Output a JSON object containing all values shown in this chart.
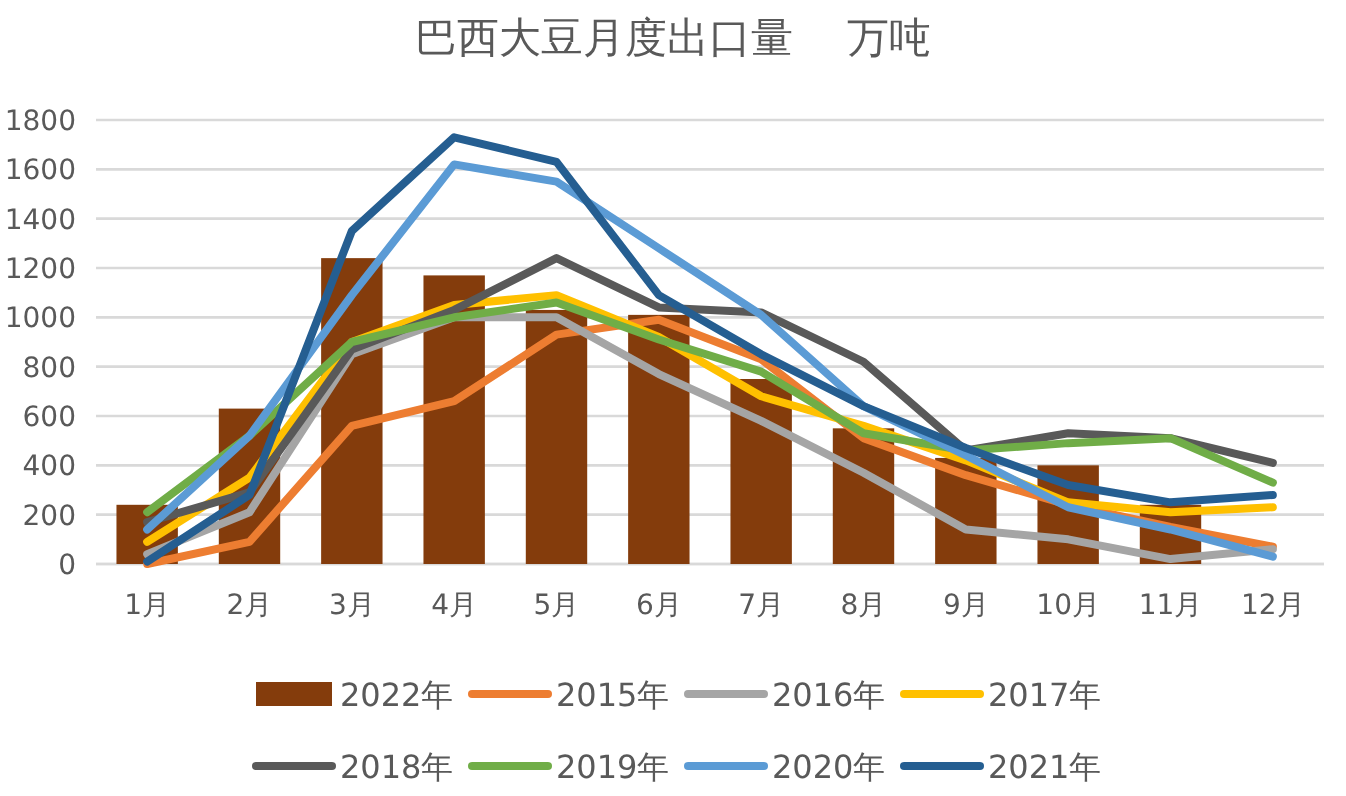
{
  "chart_data": {
    "type": "bar",
    "title": "巴西大豆月度出口量    万吨",
    "categories": [
      "1月",
      "2月",
      "3月",
      "4月",
      "5月",
      "6月",
      "7月",
      "8月",
      "9月",
      "10月",
      "11月",
      "12月"
    ],
    "series": [
      {
        "name": "2022年",
        "color": "#843c0c",
        "values": [
          240,
          630,
          1240,
          1170,
          1030,
          1010,
          750,
          550,
          430,
          400,
          240,
          null
        ]
      },
      {
        "name": "2015年",
        "type": "line",
        "color": "#ed7d31",
        "values": [
          0,
          90,
          560,
          660,
          930,
          990,
          830,
          510,
          360,
          240,
          150,
          70
        ]
      },
      {
        "name": "2016年",
        "type": "line",
        "color": "#a5a5a5",
        "values": [
          40,
          210,
          850,
          1000,
          1000,
          770,
          580,
          370,
          140,
          100,
          20,
          60
        ]
      },
      {
        "name": "2017年",
        "type": "line",
        "color": "#ffc000",
        "values": [
          90,
          350,
          900,
          1050,
          1090,
          920,
          680,
          560,
          420,
          250,
          210,
          230
        ]
      },
      {
        "name": "2018年",
        "type": "line",
        "color": "#595959",
        "values": [
          170,
          290,
          870,
          1030,
          1240,
          1040,
          1020,
          820,
          460,
          530,
          510,
          410
        ]
      },
      {
        "name": "2019年",
        "type": "line",
        "color": "#70ad47",
        "values": [
          210,
          520,
          900,
          1000,
          1060,
          910,
          780,
          530,
          460,
          490,
          510,
          330
        ]
      },
      {
        "name": "2020年",
        "type": "line",
        "color": "#5b9bd5",
        "values": [
          140,
          520,
          1090,
          1620,
          1550,
          1280,
          1010,
          640,
          440,
          230,
          140,
          30
        ]
      },
      {
        "name": "2021年",
        "type": "line",
        "color": "#255e91",
        "values": [
          10,
          280,
          1350,
          1730,
          1630,
          1090,
          850,
          640,
          470,
          320,
          250,
          280
        ]
      }
    ],
    "ylim": [
      0,
      1800
    ],
    "yticks": [
      0,
      200,
      400,
      600,
      800,
      1000,
      1200,
      1400,
      1600,
      1800
    ],
    "grid": "y",
    "legend": "bottom"
  }
}
